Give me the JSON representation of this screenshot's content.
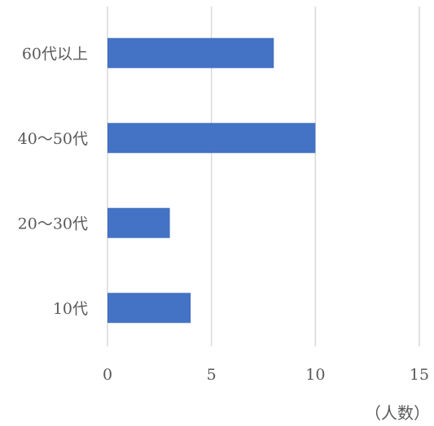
{
  "chart_data": {
    "type": "bar",
    "orientation": "horizontal",
    "categories": [
      "60代以上",
      "40〜50代",
      "20〜30代",
      "10代"
    ],
    "values": [
      8,
      10,
      3,
      4
    ],
    "xlim": [
      0,
      15
    ],
    "xticks": [
      0,
      5,
      10,
      15
    ],
    "unit_label": "（人数）",
    "grid": true,
    "bar_color": "#4472c4",
    "grid_color": "#d9d9d9",
    "text_color": "#595959"
  }
}
